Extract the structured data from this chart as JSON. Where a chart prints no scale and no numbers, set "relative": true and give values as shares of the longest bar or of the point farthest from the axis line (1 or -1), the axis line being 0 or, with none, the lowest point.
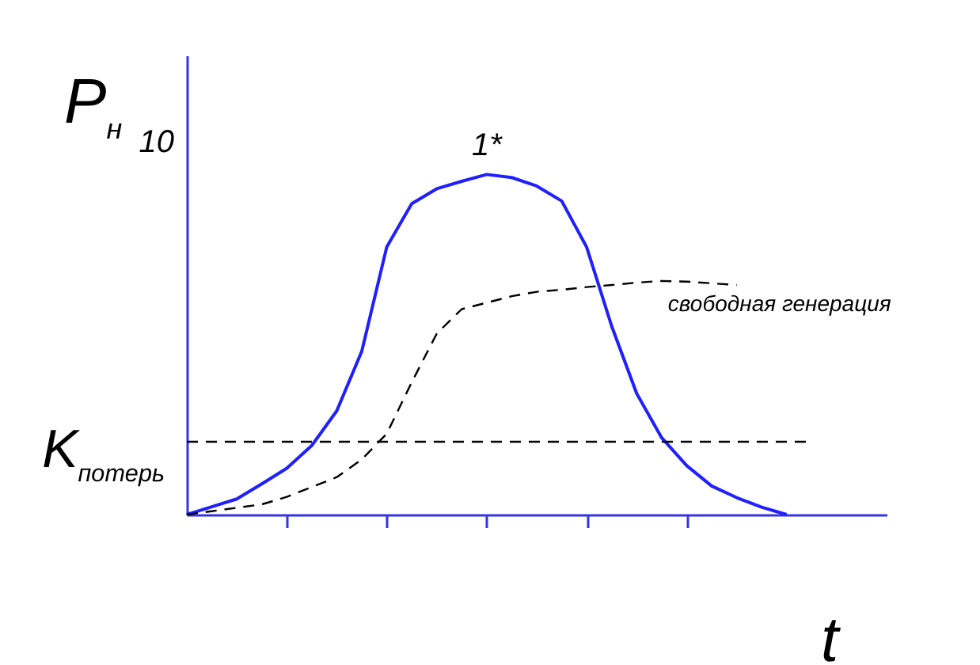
{
  "chart_data": {
    "type": "line",
    "xlabel": "t",
    "ylabel": "P$_{н}$",
    "categories": [
      null,
      null,
      null,
      null,
      null,
      null,
      null,
      null,
      null,
      null,
      null,
      null,
      null,
      null,
      null,
      null,
      null,
      null,
      null,
      null,
      null,
      null,
      null,
      null,
      null,
      null,
      null,
      null,
      null
    ],
    "relative": true,
    "grid": false,
    "series": [
      {
        "name": "1*",
        "color": "#1f1fff",
        "values": [
          0,
          0.023,
          0.046,
          0.09,
          0.136,
          0.203,
          0.305,
          0.48,
          0.787,
          0.914,
          0.958,
          0.98,
          1,
          0.991,
          0.966,
          0.922,
          0.786,
          0.554,
          0.356,
          0.226,
          0.144,
          0.084,
          0.05,
          0.022,
          0,
          null,
          null,
          null,
          null
        ]
      },
      {
        "name": "свободная генерация",
        "color": "#000000",
        "line_style": "dashed",
        "values": [
          0,
          0.01,
          0.02,
          0.03,
          0.052,
          0.081,
          0.11,
          0.162,
          0.238,
          0.389,
          0.532,
          0.604,
          0.623,
          0.642,
          0.655,
          0.661,
          0.669,
          0.675,
          0.682,
          0.687,
          0.685,
          0.68,
          0.675,
          null,
          null,
          null,
          null,
          null,
          null
        ]
      }
    ],
    "ref_lines": [
      {
        "axis": "y",
        "value": 0.214,
        "label": "K$_{потерь}$",
        "line_style": "dashed",
        "color": "#000000"
      }
    ],
    "annotations": [
      "10"
    ]
  }
}
